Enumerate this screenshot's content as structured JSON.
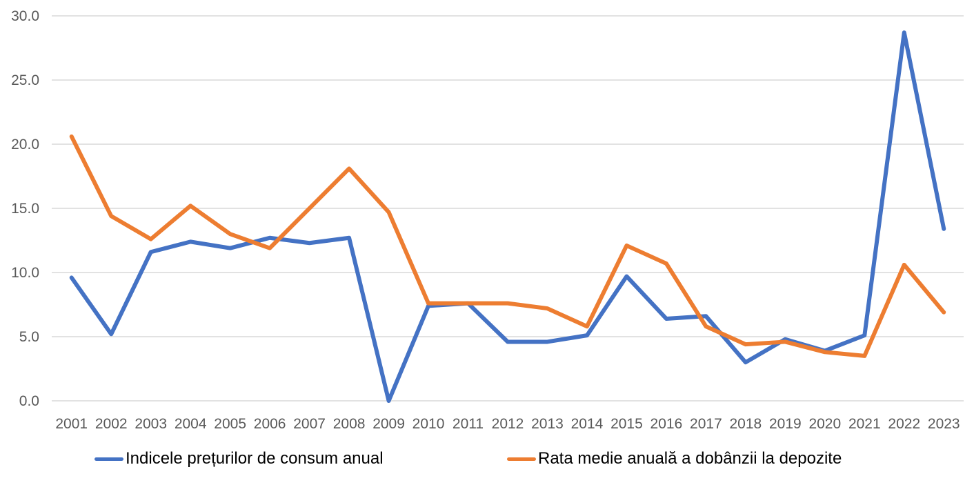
{
  "chart_data": {
    "type": "line",
    "categories": [
      "2001",
      "2002",
      "2003",
      "2004",
      "2005",
      "2006",
      "2007",
      "2008",
      "2009",
      "2010",
      "2011",
      "2012",
      "2013",
      "2014",
      "2015",
      "2016",
      "2017",
      "2018",
      "2019",
      "2020",
      "2021",
      "2022",
      "2023"
    ],
    "series": [
      {
        "name": "Indicele prețurilor de consum anual",
        "color": "#4472C4",
        "values": [
          9.6,
          5.2,
          11.6,
          12.4,
          11.9,
          12.7,
          12.3,
          12.7,
          0.0,
          7.4,
          7.6,
          4.6,
          4.6,
          5.1,
          9.7,
          6.4,
          6.6,
          3.0,
          4.8,
          3.9,
          5.1,
          28.7,
          13.4
        ]
      },
      {
        "name": "Rata medie anuală a dobânzii la depozite",
        "color": "#ED7D31",
        "values": [
          20.6,
          14.4,
          12.6,
          15.2,
          13.0,
          11.9,
          15.0,
          18.1,
          14.7,
          7.6,
          7.6,
          7.6,
          7.2,
          5.8,
          12.1,
          10.7,
          5.8,
          4.4,
          4.6,
          3.8,
          3.5,
          10.6,
          6.9
        ]
      }
    ],
    "title": "",
    "xlabel": "",
    "ylabel": "",
    "ylim": [
      0,
      30
    ],
    "ytick_step": 5,
    "ytick_labels": [
      "0.0",
      "5.0",
      "10.0",
      "15.0",
      "20.0",
      "25.0",
      "30.0"
    ],
    "grid": true,
    "legend_position": "bottom"
  },
  "colors": {
    "background": "#FFFFFF",
    "gridline": "#D9D9D9",
    "text": "#595959"
  }
}
